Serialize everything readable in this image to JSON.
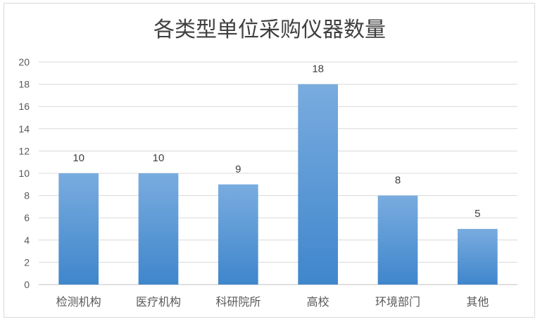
{
  "chart_data": {
    "type": "bar",
    "title": "各类型单位采购仪器数量",
    "categories": [
      "检测机构",
      "医疗机构",
      "科研院所",
      "高校",
      "环境部门",
      "其他"
    ],
    "values": [
      10,
      10,
      9,
      18,
      8,
      5
    ],
    "ylim": [
      0,
      20
    ],
    "yticks": [
      0,
      2,
      4,
      6,
      8,
      10,
      12,
      14,
      16,
      18,
      20
    ],
    "grid": true,
    "data_labels": true,
    "colors": {
      "bar_top": "#79acdf",
      "bar_bottom": "#3f86cc"
    }
  }
}
